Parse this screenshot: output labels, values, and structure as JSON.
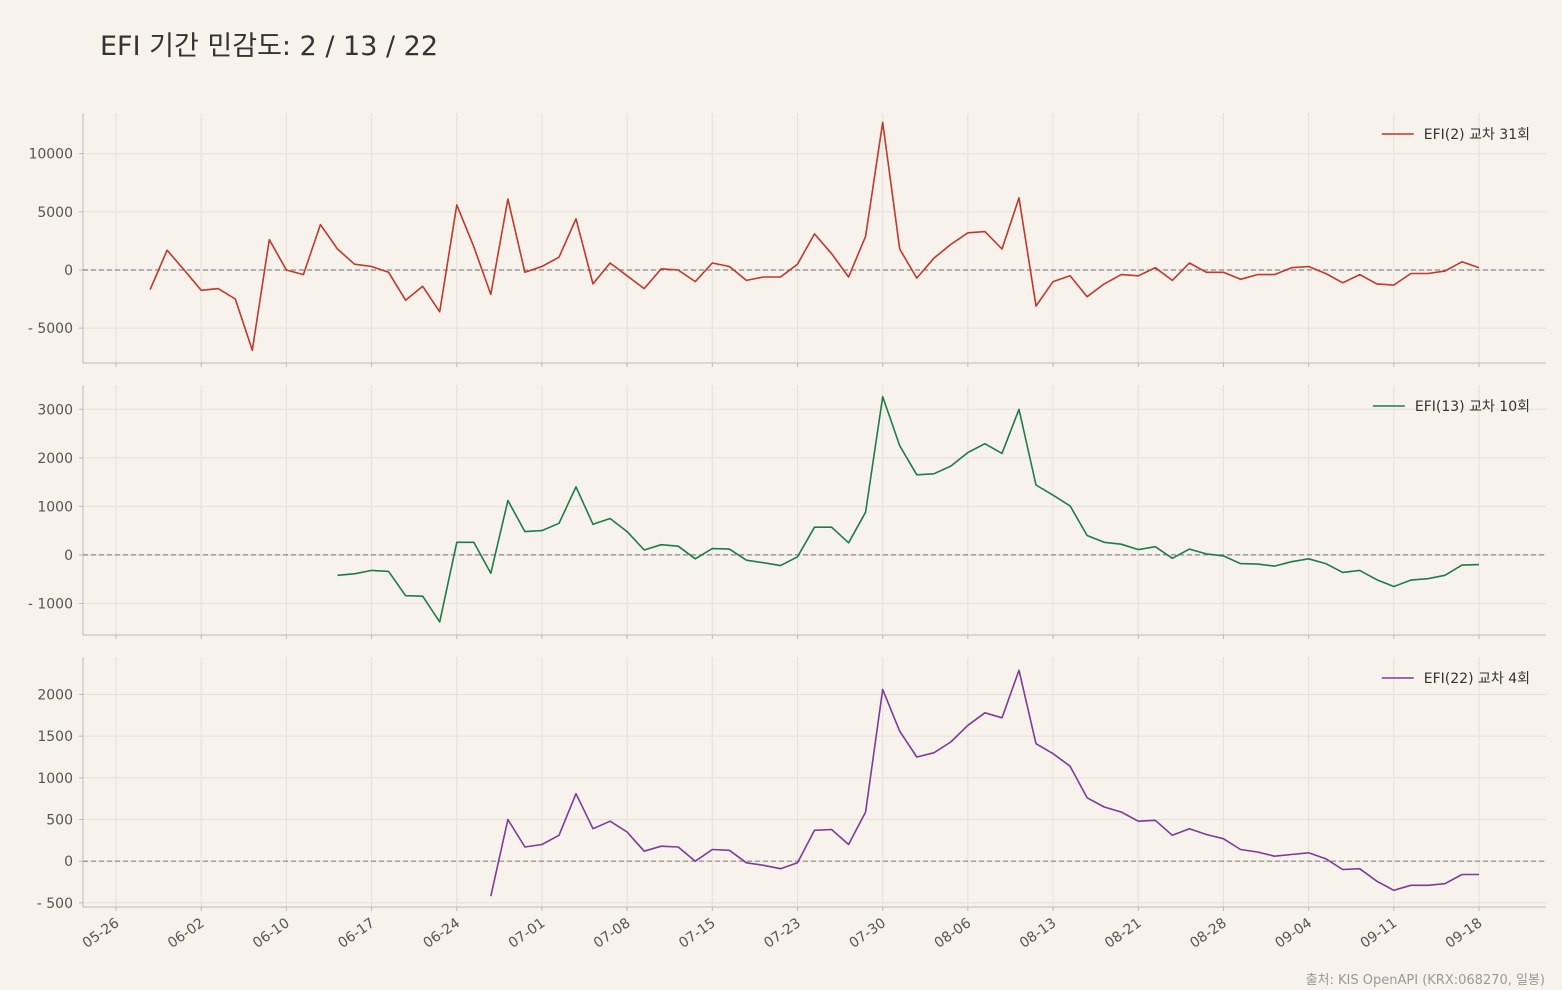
{
  "title": "EFI 기간 민감도: 2 / 13 / 22",
  "source": "출처: KIS OpenAPI (KRX:068270, 일봉)",
  "colors": {
    "background": "#f7f2ec",
    "grid": "#e6e0d8",
    "zero_line": "#888888",
    "axis": "#bbbbbb",
    "text": "#555555"
  },
  "chart_data": {
    "type": "line",
    "x_tick_labels": [
      "05-26",
      "06-02",
      "06-10",
      "06-17",
      "06-24",
      "07-01",
      "07-08",
      "07-15",
      "07-23",
      "07-30",
      "08-06",
      "08-13",
      "08-21",
      "08-28",
      "09-04",
      "09-11",
      "09-18"
    ],
    "x_tick_index": [
      -2,
      3,
      8,
      13,
      18,
      23,
      28,
      33,
      38,
      43,
      48,
      53,
      58,
      63,
      68,
      73,
      78
    ],
    "x_range": [
      -4,
      82
    ],
    "panels": [
      {
        "legend": "EFI(2) 교차 31회",
        "color": "#c0392b",
        "ylim": [
          -8000,
          13500
        ],
        "yticks": [
          -5000,
          0,
          5000,
          10000
        ],
        "start_index": 0,
        "values": [
          -1700,
          1700,
          0,
          -1750,
          -1600,
          -2500,
          -6900,
          2600,
          0,
          -400,
          3900,
          1800,
          500,
          300,
          -200,
          -2600,
          -1400,
          -3600,
          5600,
          2000,
          -2100,
          6100,
          -200,
          300,
          1100,
          4400,
          -1200,
          600,
          -500,
          -1600,
          100,
          0,
          -1000,
          600,
          300,
          -900,
          -600,
          -600,
          500,
          3100,
          1400,
          -600,
          2900,
          12700,
          1800,
          -700,
          1000,
          2200,
          3200,
          3300,
          1800,
          6200,
          -3100,
          -1000,
          -500,
          -2300,
          -1200,
          -400,
          -500,
          200,
          -900,
          600,
          -200,
          -200,
          -800,
          -400,
          -400,
          200,
          300,
          -300,
          -1100,
          -400,
          -1200,
          -1300,
          -300,
          -300,
          -100,
          700,
          200
        ]
      },
      {
        "legend": "EFI(13) 교차 10회",
        "color": "#1e7d46",
        "ylim": [
          -1650,
          3500
        ],
        "yticks": [
          -1000,
          0,
          1000,
          2000,
          3000
        ],
        "start_index": 11,
        "values": [
          -420,
          -390,
          -320,
          -340,
          -840,
          -850,
          -1380,
          260,
          260,
          -380,
          1120,
          480,
          500,
          650,
          1400,
          630,
          750,
          480,
          100,
          210,
          180,
          -80,
          130,
          120,
          -110,
          -160,
          -220,
          -40,
          570,
          570,
          250,
          880,
          3260,
          2250,
          1650,
          1670,
          1830,
          2110,
          2290,
          2090,
          3000,
          1440,
          1230,
          1010,
          400,
          260,
          220,
          110,
          170,
          -70,
          120,
          20,
          -20,
          -180,
          -190,
          -230,
          -140,
          -80,
          -180,
          -360,
          -320,
          -510,
          -650,
          -520,
          -490,
          -420,
          -210,
          -200
        ]
      },
      {
        "legend": "EFI(22) 교차 4회",
        "color": "#7d3c98",
        "ylim": [
          -550,
          2450
        ],
        "yticks": [
          -500,
          0,
          500,
          1000,
          1500,
          2000
        ],
        "start_index": 20,
        "values": [
          -420,
          500,
          170,
          200,
          310,
          810,
          390,
          480,
          350,
          120,
          180,
          170,
          0,
          140,
          130,
          -20,
          -50,
          -90,
          -20,
          370,
          380,
          200,
          590,
          2060,
          1560,
          1250,
          1300,
          1430,
          1630,
          1780,
          1720,
          2290,
          1410,
          1290,
          1140,
          760,
          650,
          590,
          480,
          490,
          310,
          390,
          320,
          270,
          140,
          110,
          60,
          80,
          100,
          30,
          -100,
          -90,
          -240,
          -350,
          -290,
          -290,
          -270,
          -160,
          -160
        ]
      }
    ]
  }
}
